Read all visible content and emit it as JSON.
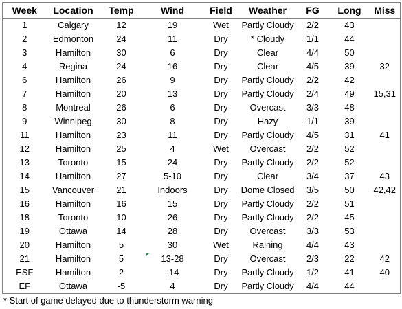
{
  "table": {
    "headers": [
      "Week",
      "Location",
      "Temp",
      "Wind",
      "Field",
      "Weather",
      "FG",
      "Long",
      "Miss"
    ],
    "rows": [
      {
        "week": "1",
        "location": "Calgary",
        "temp": "12",
        "wind": "19",
        "field": "Wet",
        "weather": "Partly Cloudy",
        "fg": "2/2",
        "long": "43",
        "miss": ""
      },
      {
        "week": "2",
        "location": "Edmonton",
        "temp": "24",
        "wind": "11",
        "field": "Dry",
        "weather": "* Cloudy",
        "fg": "1/1",
        "long": "44",
        "miss": ""
      },
      {
        "week": "3",
        "location": "Hamilton",
        "temp": "30",
        "wind": "6",
        "field": "Dry",
        "weather": "Clear",
        "fg": "4/4",
        "long": "50",
        "miss": ""
      },
      {
        "week": "4",
        "location": "Regina",
        "temp": "24",
        "wind": "16",
        "field": "Dry",
        "weather": "Clear",
        "fg": "4/5",
        "long": "39",
        "miss": "32"
      },
      {
        "week": "6",
        "location": "Hamilton",
        "temp": "26",
        "wind": "9",
        "field": "Dry",
        "weather": "Partly Cloudy",
        "fg": "2/2",
        "long": "42",
        "miss": ""
      },
      {
        "week": "7",
        "location": "Hamilton",
        "temp": "20",
        "wind": "13",
        "field": "Dry",
        "weather": "Partly Cloudy",
        "fg": "2/4",
        "long": "49",
        "miss": "15,31"
      },
      {
        "week": "8",
        "location": "Montreal",
        "temp": "26",
        "wind": "6",
        "field": "Dry",
        "weather": "Overcast",
        "fg": "3/3",
        "long": "48",
        "miss": ""
      },
      {
        "week": "9",
        "location": "Winnipeg",
        "temp": "30",
        "wind": "8",
        "field": "Dry",
        "weather": "Hazy",
        "fg": "1/1",
        "long": "39",
        "miss": ""
      },
      {
        "week": "11",
        "location": "Hamilton",
        "temp": "23",
        "wind": "11",
        "field": "Dry",
        "weather": "Partly Cloudy",
        "fg": "4/5",
        "long": "31",
        "miss": "41"
      },
      {
        "week": "12",
        "location": "Hamilton",
        "temp": "25",
        "wind": "4",
        "field": "Wet",
        "weather": "Overcast",
        "fg": "2/2",
        "long": "52",
        "miss": ""
      },
      {
        "week": "13",
        "location": "Toronto",
        "temp": "15",
        "wind": "24",
        "field": "Dry",
        "weather": "Partly Cloudy",
        "fg": "2/2",
        "long": "52",
        "miss": ""
      },
      {
        "week": "14",
        "location": "Hamilton",
        "temp": "27",
        "wind": "5-10",
        "field": "Dry",
        "weather": "Clear",
        "fg": "3/4",
        "long": "37",
        "miss": "43"
      },
      {
        "week": "15",
        "location": "Vancouver",
        "temp": "21",
        "wind": "Indoors",
        "field": "Dry",
        "weather": "Dome Closed",
        "fg": "3/5",
        "long": "50",
        "miss": "42,42"
      },
      {
        "week": "16",
        "location": "Hamilton",
        "temp": "16",
        "wind": "15",
        "field": "Dry",
        "weather": "Partly Cloudy",
        "fg": "2/2",
        "long": "51",
        "miss": ""
      },
      {
        "week": "18",
        "location": "Toronto",
        "temp": "10",
        "wind": "26",
        "field": "Dry",
        "weather": "Partly Cloudy",
        "fg": "2/2",
        "long": "45",
        "miss": ""
      },
      {
        "week": "19",
        "location": "Ottawa",
        "temp": "14",
        "wind": "28",
        "field": "Dry",
        "weather": "Overcast",
        "fg": "3/3",
        "long": "53",
        "miss": ""
      },
      {
        "week": "20",
        "location": "Hamilton",
        "temp": "5",
        "wind": "30",
        "field": "Wet",
        "weather": "Raining",
        "fg": "4/4",
        "long": "43",
        "miss": ""
      },
      {
        "week": "21",
        "location": "Hamilton",
        "temp": "5",
        "wind": "13-28",
        "field": "Dry",
        "weather": "Overcast",
        "fg": "2/3",
        "long": "22",
        "miss": "42"
      },
      {
        "week": "ESF",
        "location": "Hamilton",
        "temp": "2",
        "wind": "-14",
        "field": "Dry",
        "weather": "Partly Cloudy",
        "fg": "1/2",
        "long": "41",
        "miss": "40"
      },
      {
        "week": "EF",
        "location": "Ottawa",
        "temp": "-5",
        "wind": "4",
        "field": "Dry",
        "weather": "Partly Cloudy",
        "fg": "4/4",
        "long": "44",
        "miss": ""
      }
    ]
  },
  "footnote": "* Start of game delayed due to thunderstorm warning",
  "colors": {
    "border": "#7f7f7f",
    "comment_marker": "#2e8b57"
  }
}
